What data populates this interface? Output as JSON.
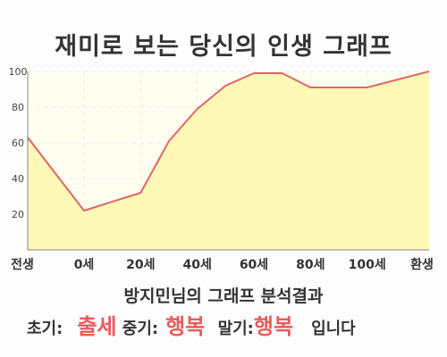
{
  "title": "재미로 보는 당신의 인생 그래프",
  "chart_data": {
    "type": "area",
    "title": "재미로 보는 당신의 인생 그래프",
    "xlabel": "",
    "ylabel": "",
    "x_ticks": [
      "전생",
      "0세",
      "20세",
      "40세",
      "60세",
      "80세",
      "100세",
      "환생"
    ],
    "y_ticks": [
      "20",
      "40",
      "60",
      "80",
      "100"
    ],
    "ylim": [
      0,
      100
    ],
    "grid": true,
    "points": [
      {
        "x": "전생",
        "y": 63
      },
      {
        "x": "0세",
        "y": 22
      },
      {
        "x": "20세",
        "y": 32
      },
      {
        "x": "30세",
        "y": 61
      },
      {
        "x": "40세",
        "y": 79
      },
      {
        "x": "50세",
        "y": 92
      },
      {
        "x": "60세",
        "y": 99
      },
      {
        "x": "70세",
        "y": 99
      },
      {
        "x": "80세",
        "y": 91
      },
      {
        "x": "100세",
        "y": 91
      },
      {
        "x": "환생",
        "y": 100
      }
    ],
    "colors": {
      "line": "#e06666",
      "fill": "#fff9b8",
      "plot_bg": "#fffff0",
      "grid": "#eeeeee"
    }
  },
  "summary": {
    "line1": "방지민님의 그래프 분석결과",
    "early_label": "초기:",
    "early_value": "출세",
    "mid_label": "중기:",
    "mid_value": "행복",
    "late_label": "말기:",
    "late_value": "행복",
    "ending": "입니다"
  }
}
